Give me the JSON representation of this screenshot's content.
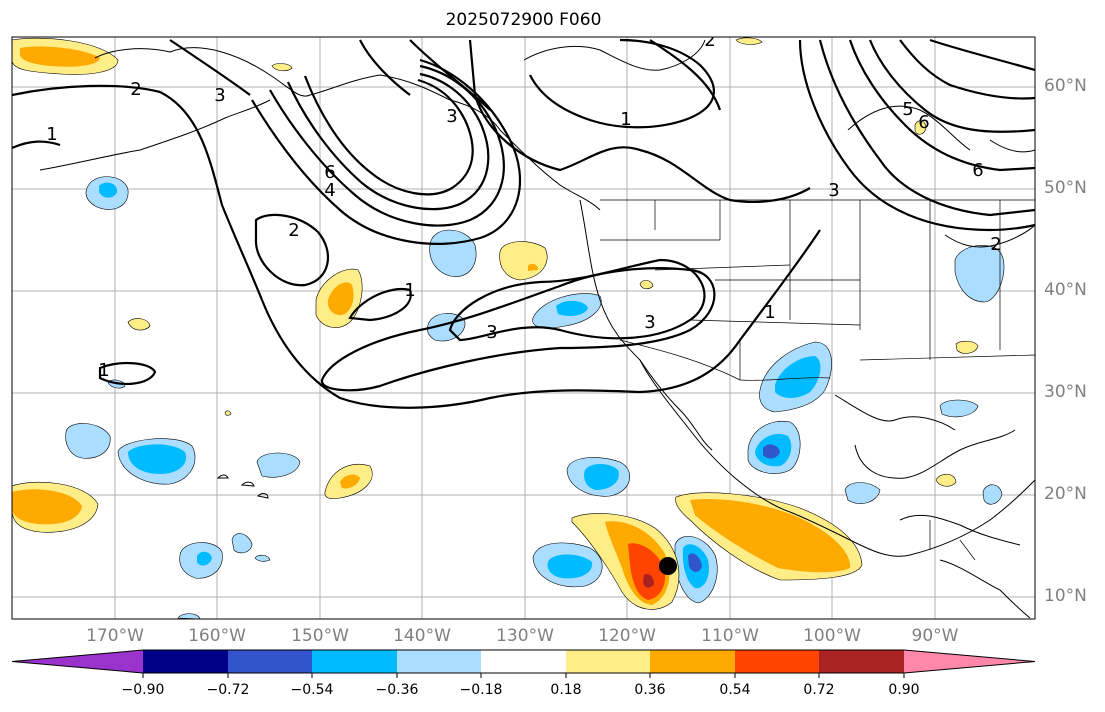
{
  "title": "2025072900 F060",
  "lat_labels": [
    "60°N",
    "50°N",
    "40°N",
    "30°N",
    "20°N",
    "10°N"
  ],
  "lon_labels": [
    "170°W",
    "160°W",
    "150°W",
    "140°W",
    "130°W",
    "120°W",
    "110°W",
    "100°W",
    "90°W"
  ],
  "contour_labels": [
    "2",
    "3",
    "2",
    "1",
    "3",
    "6",
    "4",
    "1",
    "2",
    "1",
    "3",
    "3",
    "1",
    "1",
    "5",
    "6",
    "6",
    "3",
    "2"
  ],
  "colorbar": {
    "colors": [
      "#9933cc",
      "#000088",
      "#3355cc",
      "#00bbff",
      "#aaddff",
      "#ffffff",
      "#ffee88",
      "#ffaa00",
      "#ff4400",
      "#aa2222",
      "#ff88aa"
    ],
    "labels": [
      "−0.90",
      "−0.72",
      "−0.54",
      "−0.36",
      "−0.18",
      "0.18",
      "0.36",
      "0.54",
      "0.72",
      "0.90"
    ]
  },
  "marker": {
    "lat": 13,
    "lon": -116
  }
}
